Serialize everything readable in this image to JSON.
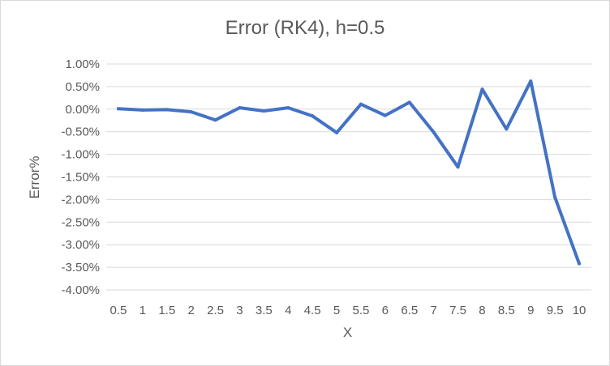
{
  "chart_data": {
    "type": "line",
    "title": "Error (RK4), h=0.5",
    "xlabel": "X",
    "ylabel": "Error%",
    "categories": [
      "0.5",
      "1",
      "1.5",
      "2",
      "2.5",
      "3",
      "3.5",
      "4",
      "4.5",
      "5",
      "5.5",
      "6",
      "6.5",
      "7",
      "7.5",
      "8",
      "8.5",
      "9",
      "9.5",
      "10"
    ],
    "y_ticks": [
      "1.00%",
      "0.50%",
      "0.00%",
      "-0.50%",
      "-1.00%",
      "-1.50%",
      "-2.00%",
      "-2.50%",
      "-3.00%",
      "-3.50%",
      "-4.00%"
    ],
    "ylim": [
      -4.0,
      1.0
    ],
    "y_unit": "%",
    "grid": true,
    "legend": "none",
    "series": [
      {
        "color": "#4472c4",
        "values": [
          0.01,
          -0.02,
          -0.01,
          -0.06,
          -0.24,
          0.03,
          -0.04,
          0.03,
          -0.15,
          -0.52,
          0.11,
          -0.14,
          0.15,
          -0.51,
          -1.28,
          0.44,
          -0.44,
          0.62,
          -1.95,
          -3.42
        ]
      }
    ]
  }
}
